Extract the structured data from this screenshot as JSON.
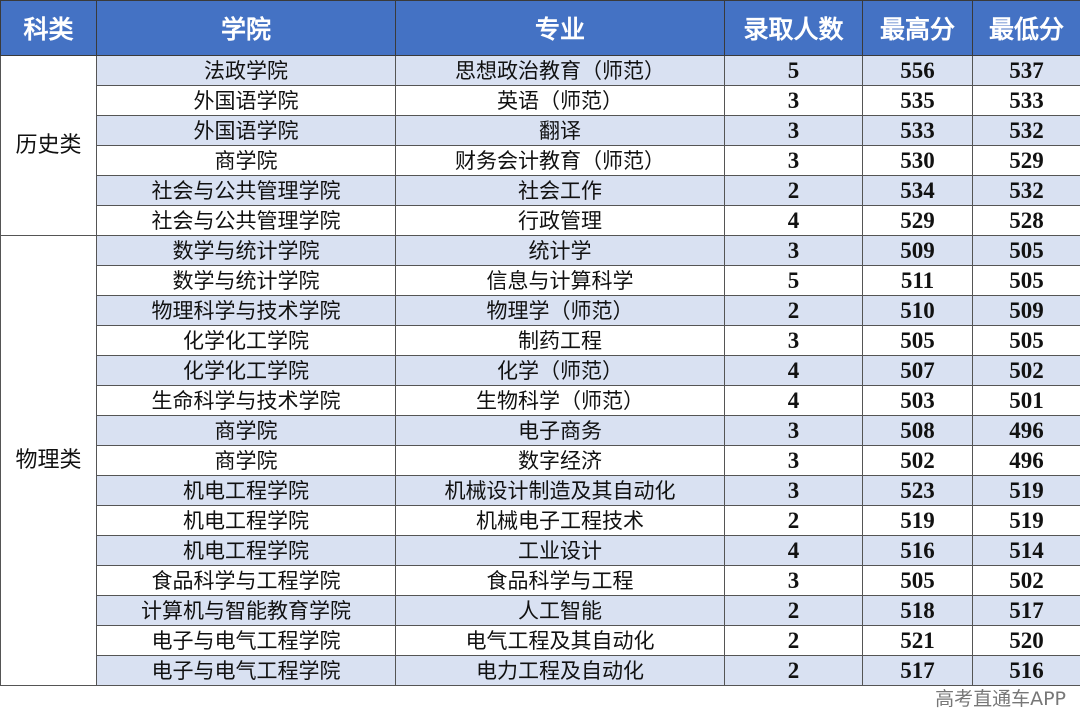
{
  "colors": {
    "header_bg": "#4472C4",
    "row_alt_bg": "#D9E1F2"
  },
  "headers": [
    "科类",
    "学院",
    "专业",
    "录取人数",
    "最高分",
    "最低分"
  ],
  "groups": [
    {
      "category": "历史类",
      "rows": [
        [
          "法政学院",
          "思想政治教育（师范）",
          "5",
          "556",
          "537"
        ],
        [
          "外国语学院",
          "英语（师范）",
          "3",
          "535",
          "533"
        ],
        [
          "外国语学院",
          "翻译",
          "3",
          "533",
          "532"
        ],
        [
          "商学院",
          "财务会计教育（师范）",
          "3",
          "530",
          "529"
        ],
        [
          "社会与公共管理学院",
          "社会工作",
          "2",
          "534",
          "532"
        ],
        [
          "社会与公共管理学院",
          "行政管理",
          "4",
          "529",
          "528"
        ]
      ]
    },
    {
      "category": "物理类",
      "rows": [
        [
          "数学与统计学院",
          "统计学",
          "3",
          "509",
          "505"
        ],
        [
          "数学与统计学院",
          "信息与计算科学",
          "5",
          "511",
          "505"
        ],
        [
          "物理科学与技术学院",
          "物理学（师范）",
          "2",
          "510",
          "509"
        ],
        [
          "化学化工学院",
          "制药工程",
          "3",
          "505",
          "505"
        ],
        [
          "化学化工学院",
          "化学（师范）",
          "4",
          "507",
          "502"
        ],
        [
          "生命科学与技术学院",
          "生物科学（师范）",
          "4",
          "503",
          "501"
        ],
        [
          "商学院",
          "电子商务",
          "3",
          "508",
          "496"
        ],
        [
          "商学院",
          "数字经济",
          "3",
          "502",
          "496"
        ],
        [
          "机电工程学院",
          "机械设计制造及其自动化",
          "3",
          "523",
          "519"
        ],
        [
          "机电工程学院",
          "机械电子工程技术",
          "2",
          "519",
          "519"
        ],
        [
          "机电工程学院",
          "工业设计",
          "4",
          "516",
          "514"
        ],
        [
          "食品科学与工程学院",
          "食品科学与工程",
          "3",
          "505",
          "502"
        ],
        [
          "计算机与智能教育学院",
          "人工智能",
          "2",
          "518",
          "517"
        ],
        [
          "电子与电气工程学院",
          "电气工程及其自动化",
          "2",
          "521",
          "520"
        ],
        [
          "电子与电气工程学院",
          "电力工程及自动化",
          "2",
          "517",
          "516"
        ]
      ]
    }
  ],
  "watermark": "高考直通车APP"
}
